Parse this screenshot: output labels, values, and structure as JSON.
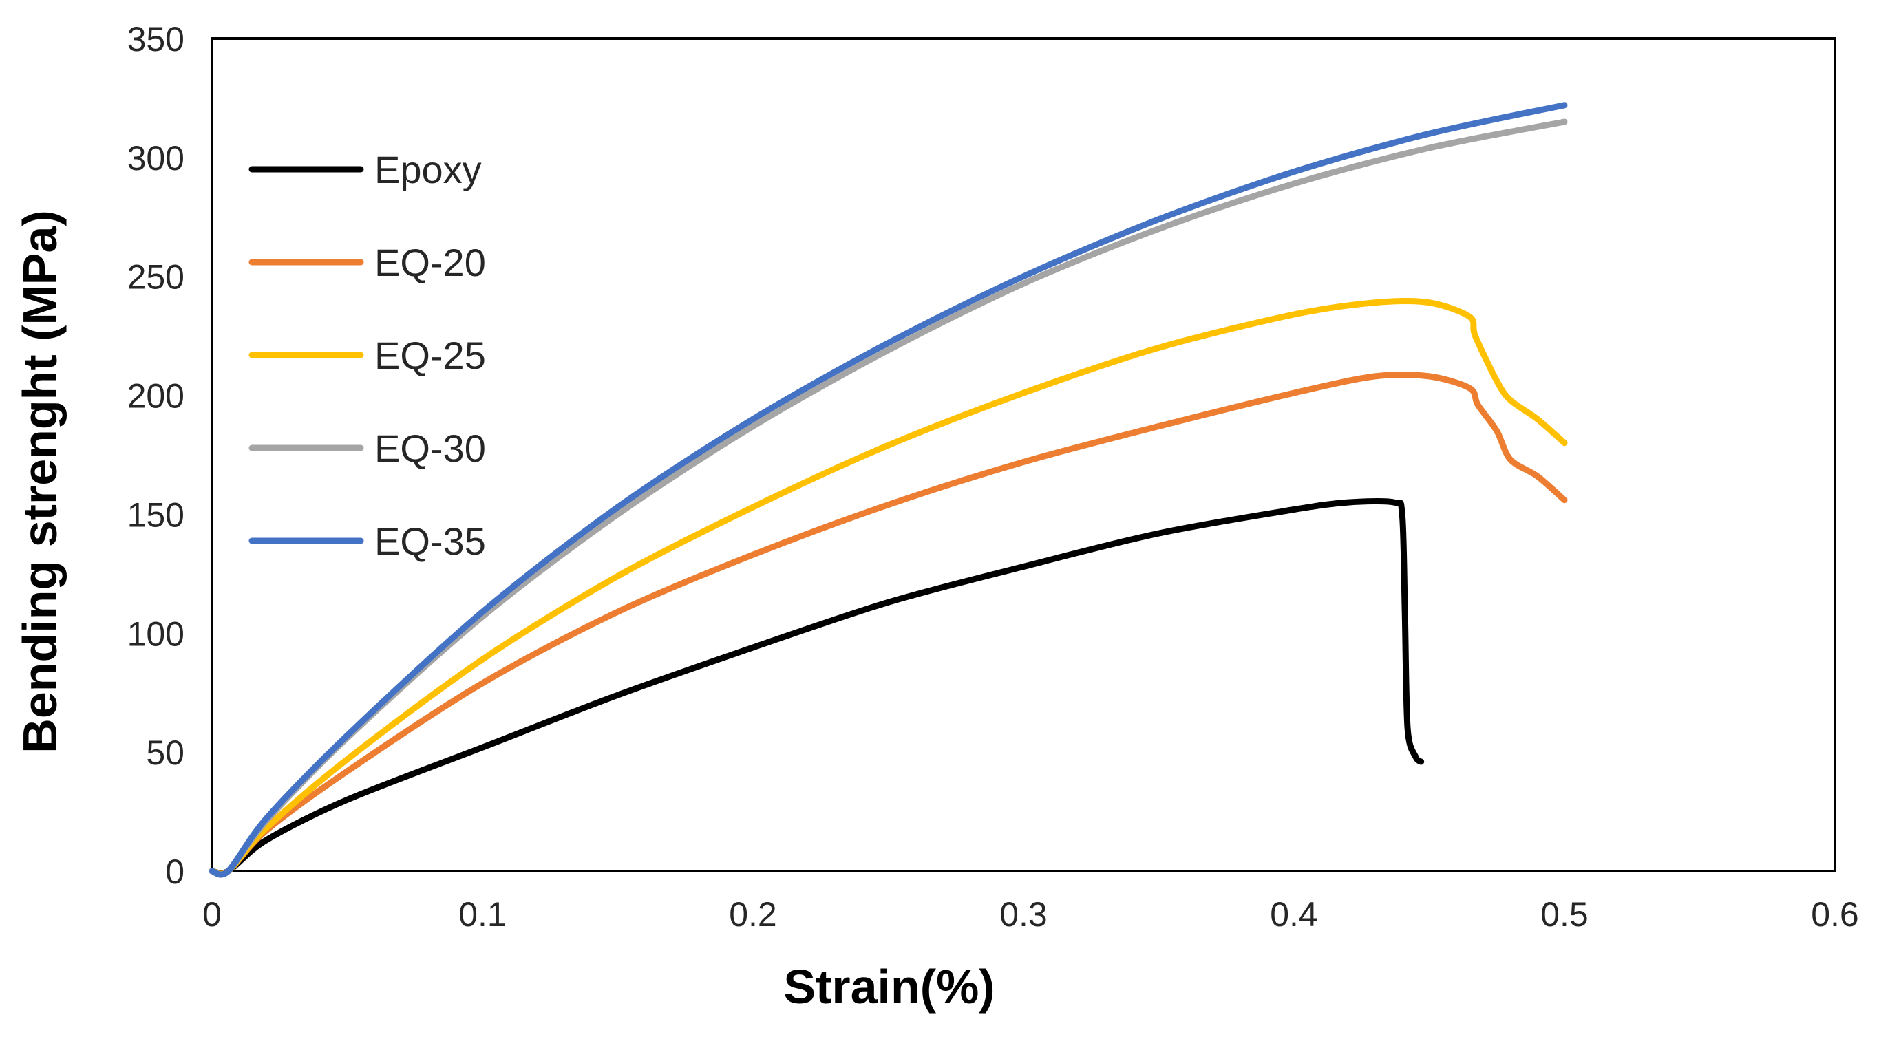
{
  "chart_data": {
    "type": "line",
    "xlabel": "Strain(%)",
    "ylabel": "Bending strenght (MPa)",
    "xlim": [
      0,
      0.6
    ],
    "ylim": [
      0,
      350
    ],
    "x_ticks": [
      "0",
      "0.1",
      "0.2",
      "0.3",
      "0.4",
      "0.5",
      "0.6"
    ],
    "y_ticks": [
      "0",
      "50",
      "100",
      "150",
      "200",
      "250",
      "300",
      "350"
    ],
    "grid": false,
    "legend_position": "top-left",
    "series": [
      {
        "name": "Epoxy",
        "color": "#000000",
        "points": [
          [
            0,
            0
          ],
          [
            0.006,
            0
          ],
          [
            0.02,
            13
          ],
          [
            0.05,
            30
          ],
          [
            0.1,
            52
          ],
          [
            0.15,
            74
          ],
          [
            0.2,
            94
          ],
          [
            0.25,
            113
          ],
          [
            0.3,
            128
          ],
          [
            0.35,
            142
          ],
          [
            0.4,
            152
          ],
          [
            0.42,
            155
          ],
          [
            0.437,
            155
          ],
          [
            0.44,
            150
          ],
          [
            0.441,
            110
          ],
          [
            0.442,
            60
          ],
          [
            0.445,
            48
          ],
          [
            0.447,
            46
          ]
        ]
      },
      {
        "name": "EQ-20",
        "color": "#ED7D31",
        "points": [
          [
            0,
            0
          ],
          [
            0.006,
            0
          ],
          [
            0.02,
            17
          ],
          [
            0.05,
            42
          ],
          [
            0.1,
            79
          ],
          [
            0.15,
            109
          ],
          [
            0.2,
            133
          ],
          [
            0.25,
            154
          ],
          [
            0.3,
            172
          ],
          [
            0.35,
            187
          ],
          [
            0.4,
            201
          ],
          [
            0.43,
            208
          ],
          [
            0.45,
            208
          ],
          [
            0.465,
            203
          ],
          [
            0.468,
            196
          ],
          [
            0.475,
            185
          ],
          [
            0.48,
            173
          ],
          [
            0.49,
            166
          ],
          [
            0.5,
            156
          ]
        ]
      },
      {
        "name": "EQ-25",
        "color": "#FFC000",
        "points": [
          [
            0,
            0
          ],
          [
            0.006,
            0
          ],
          [
            0.02,
            18
          ],
          [
            0.05,
            47
          ],
          [
            0.1,
            89
          ],
          [
            0.15,
            124
          ],
          [
            0.2,
            153
          ],
          [
            0.25,
            179
          ],
          [
            0.3,
            201
          ],
          [
            0.35,
            220
          ],
          [
            0.4,
            234
          ],
          [
            0.43,
            239
          ],
          [
            0.45,
            239
          ],
          [
            0.465,
            233
          ],
          [
            0.467,
            225
          ],
          [
            0.475,
            206
          ],
          [
            0.48,
            198
          ],
          [
            0.49,
            190
          ],
          [
            0.5,
            180
          ]
        ]
      },
      {
        "name": "EQ-30",
        "color": "#A5A5A5",
        "points": [
          [
            0,
            0
          ],
          [
            0.006,
            0
          ],
          [
            0.02,
            21
          ],
          [
            0.05,
            56
          ],
          [
            0.1,
            107
          ],
          [
            0.15,
            150
          ],
          [
            0.2,
            187
          ],
          [
            0.25,
            219
          ],
          [
            0.3,
            247
          ],
          [
            0.35,
            270
          ],
          [
            0.4,
            289
          ],
          [
            0.45,
            304
          ],
          [
            0.5,
            315
          ]
        ]
      },
      {
        "name": "EQ-35",
        "color": "#4472C4",
        "points": [
          [
            0,
            0
          ],
          [
            0.006,
            0
          ],
          [
            0.02,
            22
          ],
          [
            0.05,
            57
          ],
          [
            0.1,
            109
          ],
          [
            0.15,
            153
          ],
          [
            0.2,
            190
          ],
          [
            0.25,
            222
          ],
          [
            0.3,
            250
          ],
          [
            0.35,
            274
          ],
          [
            0.4,
            294
          ],
          [
            0.45,
            310
          ],
          [
            0.5,
            322
          ]
        ]
      }
    ]
  }
}
